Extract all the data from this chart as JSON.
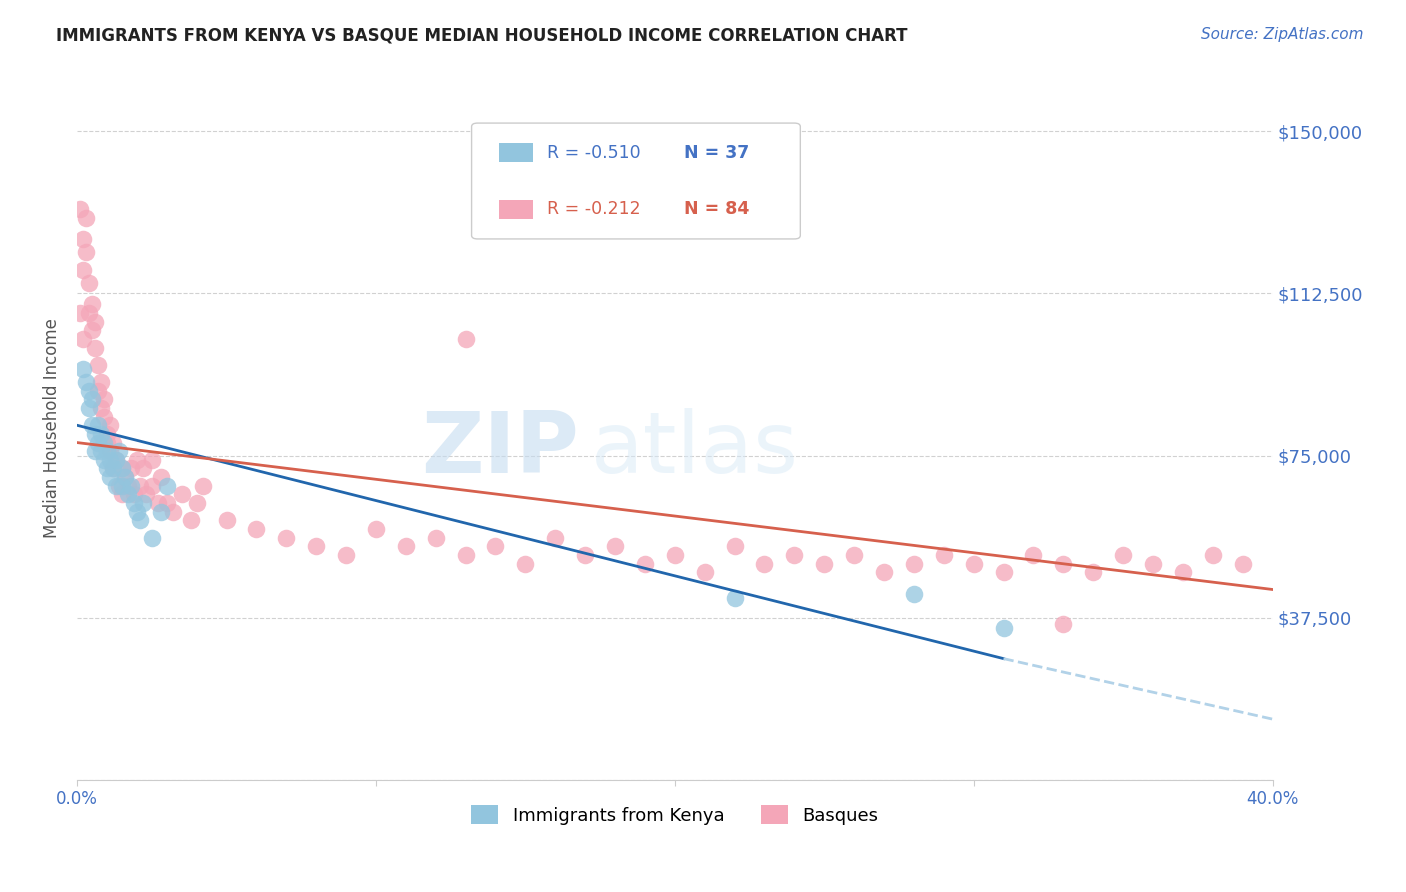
{
  "title": "IMMIGRANTS FROM KENYA VS BASQUE MEDIAN HOUSEHOLD INCOME CORRELATION CHART",
  "source": "Source: ZipAtlas.com",
  "ylabel": "Median Household Income",
  "yticks": [
    0,
    37500,
    75000,
    112500,
    150000
  ],
  "ytick_labels": [
    "",
    "$37,500",
    "$75,000",
    "$112,500",
    "$150,000"
  ],
  "ylim": [
    0,
    162500
  ],
  "xlim": [
    0.0,
    0.4
  ],
  "watermark_zip": "ZIP",
  "watermark_atlas": "atlas",
  "legend_blue_r": "R = -0.510",
  "legend_blue_n": "N = 37",
  "legend_pink_r": "R = -0.212",
  "legend_pink_n": "N = 84",
  "legend_label_blue": "Immigrants from Kenya",
  "legend_label_pink": "Basques",
  "blue_color": "#92c5de",
  "pink_color": "#f4a6b8",
  "trendline_blue_color": "#2166ac",
  "trendline_pink_color": "#d6604d",
  "trendline_blue_dashed_color": "#b2d2e8",
  "blue_scatter_x": [
    0.002,
    0.003,
    0.004,
    0.004,
    0.005,
    0.005,
    0.006,
    0.006,
    0.007,
    0.007,
    0.008,
    0.008,
    0.009,
    0.009,
    0.01,
    0.01,
    0.011,
    0.011,
    0.012,
    0.013,
    0.013,
    0.014,
    0.015,
    0.015,
    0.016,
    0.017,
    0.018,
    0.019,
    0.02,
    0.021,
    0.022,
    0.025,
    0.028,
    0.03,
    0.22,
    0.28,
    0.31
  ],
  "blue_scatter_y": [
    95000,
    92000,
    90000,
    86000,
    88000,
    82000,
    80000,
    76000,
    82000,
    78000,
    80000,
    76000,
    78000,
    74000,
    76000,
    72000,
    74000,
    70000,
    72000,
    74000,
    68000,
    76000,
    72000,
    68000,
    70000,
    66000,
    68000,
    64000,
    62000,
    60000,
    64000,
    56000,
    62000,
    68000,
    42000,
    43000,
    35000
  ],
  "pink_scatter_x": [
    0.001,
    0.002,
    0.002,
    0.003,
    0.003,
    0.004,
    0.004,
    0.005,
    0.005,
    0.006,
    0.006,
    0.007,
    0.007,
    0.008,
    0.008,
    0.009,
    0.009,
    0.01,
    0.01,
    0.011,
    0.011,
    0.012,
    0.012,
    0.013,
    0.014,
    0.015,
    0.015,
    0.016,
    0.017,
    0.018,
    0.019,
    0.02,
    0.021,
    0.022,
    0.023,
    0.025,
    0.025,
    0.027,
    0.028,
    0.03,
    0.032,
    0.035,
    0.038,
    0.04,
    0.042,
    0.05,
    0.06,
    0.07,
    0.08,
    0.09,
    0.1,
    0.11,
    0.12,
    0.13,
    0.14,
    0.15,
    0.16,
    0.17,
    0.18,
    0.19,
    0.2,
    0.21,
    0.22,
    0.23,
    0.24,
    0.25,
    0.26,
    0.27,
    0.28,
    0.29,
    0.3,
    0.31,
    0.32,
    0.33,
    0.34,
    0.35,
    0.36,
    0.37,
    0.38,
    0.39,
    0.001,
    0.002,
    0.13,
    0.33
  ],
  "pink_scatter_y": [
    132000,
    125000,
    118000,
    130000,
    122000,
    115000,
    108000,
    110000,
    104000,
    106000,
    100000,
    96000,
    90000,
    92000,
    86000,
    88000,
    84000,
    80000,
    78000,
    82000,
    76000,
    78000,
    72000,
    74000,
    68000,
    72000,
    66000,
    70000,
    68000,
    72000,
    66000,
    74000,
    68000,
    72000,
    66000,
    74000,
    68000,
    64000,
    70000,
    64000,
    62000,
    66000,
    60000,
    64000,
    68000,
    60000,
    58000,
    56000,
    54000,
    52000,
    58000,
    54000,
    56000,
    52000,
    54000,
    50000,
    56000,
    52000,
    54000,
    50000,
    52000,
    48000,
    54000,
    50000,
    52000,
    50000,
    52000,
    48000,
    50000,
    52000,
    50000,
    48000,
    52000,
    50000,
    48000,
    52000,
    50000,
    48000,
    52000,
    50000,
    108000,
    102000,
    102000,
    36000
  ]
}
